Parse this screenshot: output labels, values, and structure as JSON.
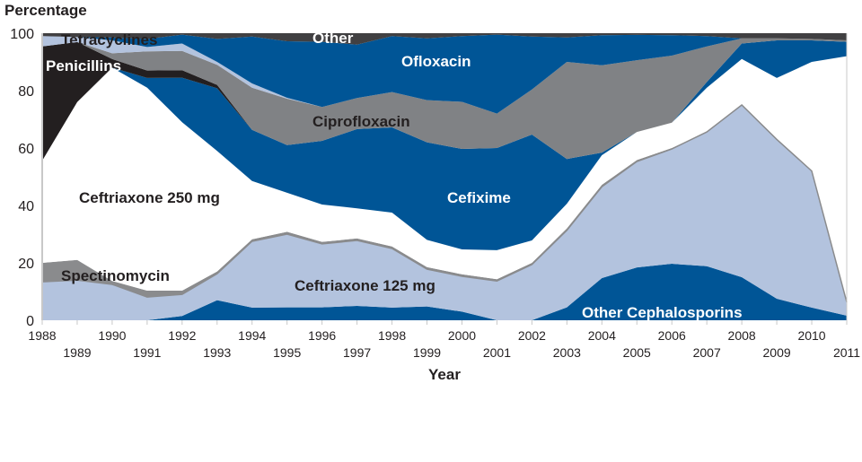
{
  "chart_data": {
    "type": "area",
    "stacked": true,
    "title": "",
    "xlabel": "Year",
    "ylabel": "Percentage",
    "xlim": [
      1988,
      2011
    ],
    "ylim": [
      0,
      100
    ],
    "yticks": [
      0,
      20,
      40,
      60,
      80,
      100
    ],
    "x": [
      1988,
      1989,
      1990,
      1991,
      1992,
      1993,
      1994,
      1995,
      1996,
      1997,
      1998,
      1999,
      2000,
      2001,
      2002,
      2003,
      2004,
      2005,
      2006,
      2007,
      2008,
      2009,
      2010,
      2011
    ],
    "grid": false,
    "legend": "labels inside areas",
    "series": [
      {
        "name": "Other Cephalosporins",
        "color": "#005596",
        "label_color": "#ffffff",
        "values": [
          0,
          0,
          0,
          0,
          1.5,
          7,
          4.4,
          4.5,
          4.5,
          5,
          4.4,
          4.8,
          3,
          0,
          0,
          4.5,
          14.7,
          18.4,
          19.7,
          18.8,
          15,
          7.5,
          4.4,
          1.6
        ]
      },
      {
        "name": "Ceftriaxone 125 mg",
        "color": "#b3c3de",
        "label_color": "#231f20",
        "values": [
          13.4,
          14,
          12.5,
          8.1,
          7.5,
          9.2,
          23.1,
          25.5,
          22.1,
          22.8,
          20.6,
          13,
          12.3,
          13.7,
          19.4,
          26.8,
          31.8,
          36.9,
          40,
          46.8,
          60,
          55.5,
          47.6,
          4.7
        ]
      },
      {
        "name": "Spectinomycin",
        "color": "#8a8b8d",
        "label_color": "#231f20",
        "values": [
          6.6,
          7,
          1.2,
          2.2,
          1.3,
          0.8,
          0.7,
          0.8,
          0.7,
          0.7,
          0.7,
          0.7,
          0.7,
          0.6,
          0.6,
          0.7,
          0.7,
          0.5,
          0.3,
          0,
          0,
          0,
          0,
          0
        ]
      },
      {
        "name": "Ceftriaxone 250 mg",
        "color": "#ffffff",
        "label_color": "#231f20",
        "values": [
          35.6,
          55,
          74.3,
          70.7,
          58.7,
          42,
          20.3,
          13.6,
          13,
          10.5,
          11.8,
          9.5,
          8.7,
          10.1,
          7.8,
          8.6,
          10.3,
          9.8,
          8.8,
          15.4,
          16,
          21.4,
          38,
          85.7
        ]
      },
      {
        "name": "Cefixime",
        "color": "#005596",
        "label_color": "#ffffff",
        "values": [
          0,
          0,
          0,
          3.4,
          15.5,
          21.8,
          17.8,
          16.6,
          22.2,
          27.6,
          29.7,
          34,
          35,
          35.6,
          36.9,
          15.6,
          0.9,
          0,
          0,
          2,
          5.4,
          13.1,
          7.5,
          5
        ]
      },
      {
        "name": "Penicillins",
        "color": "#231f20",
        "label_color": "#ffffff",
        "values": [
          39.8,
          20.9,
          3,
          2.6,
          2.6,
          1.2,
          0,
          0,
          0,
          0,
          0,
          0,
          0,
          0,
          0,
          0,
          0,
          0,
          0,
          0,
          0,
          0,
          0,
          0
        ]
      },
      {
        "name": "Ciprofloxacin",
        "color": "#808285",
        "label_color": "#231f20",
        "values": [
          0,
          0,
          2,
          6.7,
          6.7,
          7,
          14.7,
          16.2,
          11.8,
          10.8,
          12.3,
          14.7,
          16.4,
          12,
          15.7,
          33.8,
          30.4,
          25,
          23.4,
          12.4,
          1.8,
          0.7,
          0.5,
          0.5
        ]
      },
      {
        "name": "Tetracyclines",
        "color": "#b3c3de",
        "label_color": "#231f20",
        "values": [
          3.6,
          1.8,
          4.5,
          1.5,
          2.6,
          1,
          1.5,
          0.3,
          0,
          0,
          0,
          0,
          0,
          0,
          0,
          0,
          0,
          0,
          0,
          0,
          0,
          0,
          0,
          0
        ]
      },
      {
        "name": "Ofloxacin",
        "color": "#005596",
        "label_color": "#ffffff",
        "values": [
          0,
          0,
          1,
          2.8,
          3.1,
          8,
          16.3,
          19.7,
          22.7,
          18.6,
          19.5,
          21.5,
          22.9,
          27.5,
          18.4,
          8.5,
          10.5,
          8.8,
          7.1,
          3.6,
          0,
          0,
          0,
          0
        ]
      },
      {
        "name": "Other",
        "color": "#414042",
        "label_color": "#ffffff",
        "values": [
          1,
          1.3,
          1.5,
          2,
          0.5,
          2,
          1.2,
          2.8,
          3,
          4,
          1,
          1.8,
          1,
          0.5,
          1.2,
          1.5,
          0.7,
          0.6,
          0.7,
          1,
          1.8,
          1.8,
          2,
          2.5
        ]
      }
    ]
  }
}
